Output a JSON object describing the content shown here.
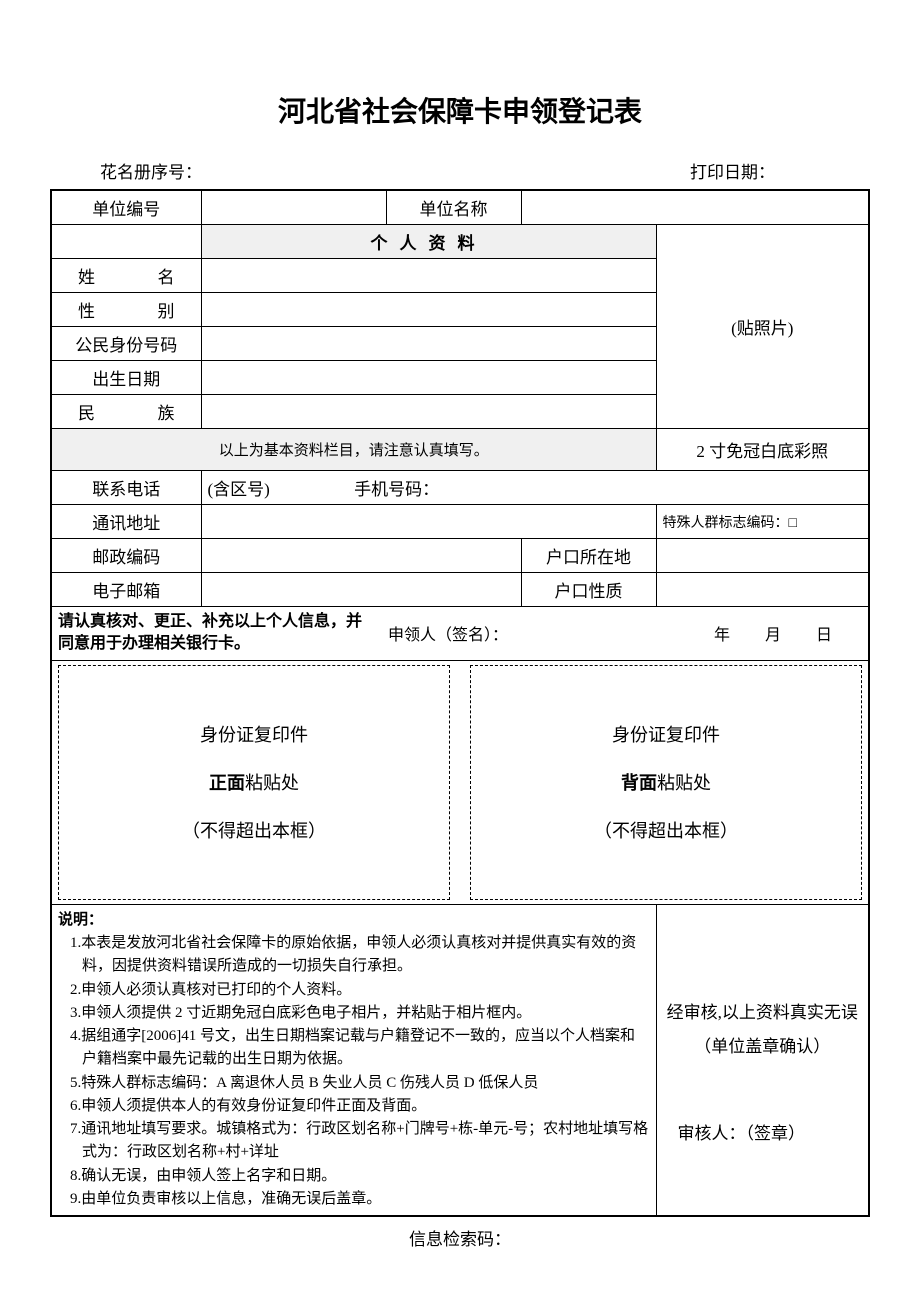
{
  "title": "河北省社会保障卡申领登记表",
  "header": {
    "roster_label": "花名册序号：",
    "print_date_label": "打印日期："
  },
  "row_unit": {
    "unit_no_label": "单位编号",
    "unit_name_label": "单位名称"
  },
  "section_personal": "个人资料",
  "labels": {
    "name": "姓",
    "name2": "名",
    "gender": "性",
    "gender2": "别",
    "id_no": "公民身份号码",
    "birth": "出生日期",
    "ethnic": "民",
    "ethnic2": "族",
    "basic_note": "以上为基本资料栏目，请注意认真填写。",
    "phone": "联系电话",
    "phone_area": "(含区号)",
    "phone_mobile": "手机号码：",
    "address": "通讯地址",
    "postcode": "邮政编码",
    "hukou_loc": "户口所在地",
    "email": "电子邮箱",
    "hukou_type": "户口性质",
    "special_code": "特殊人群标志编码：□"
  },
  "photo": {
    "placeholder": "(贴照片)",
    "spec": "2 寸免冠白底彩照"
  },
  "confirm": {
    "text_prefix": "请认真核对、更正、补充以上个人信息，并同意用于办理相关银行卡。",
    "signer": "申领人（签名）：",
    "date_y": "年",
    "date_m": "月",
    "date_d": "日"
  },
  "id_copy": {
    "title_front": "身份证复印件",
    "front_bold": "正面",
    "front_suffix": "粘贴处",
    "note": "（不得超出本框）",
    "title_back": "身份证复印件",
    "back_bold": "背面",
    "back_suffix": "粘贴处"
  },
  "instructions": {
    "title": "说明：",
    "items": [
      "1.本表是发放河北省社会保障卡的原始依据，申领人必须认真核对并提供真实有效的资料，因提供资料错误所造成的一切损失自行承担。",
      "2.申领人必须认真核对已打印的个人资料。",
      "3.申领人须提供 2 寸近期免冠白底彩色电子相片，并粘贴于相片框内。",
      "4.据组通字[2006]41 号文，出生日期档案记载与户籍登记不一致的，应当以个人档案和户籍档案中最先记载的出生日期为依据。",
      "5.特殊人群标志编码：A 离退休人员  B 失业人员 C 伤残人员  D 低保人员",
      "6.申领人须提供本人的有效身份证复印件正面及背面。",
      "7.通讯地址填写要求。城镇格式为：行政区划名称+门牌号+栋-单元-号；农村地址填写格式为：行政区划名称+村+详址",
      "8.确认无误，由申领人签上名字和日期。",
      "9.由单位负责审核以上信息，准确无误后盖章。"
    ]
  },
  "verify": {
    "line1": "经审核,以上资料真实无误",
    "line2": "（单位盖章确认）",
    "line3": "审核人：（签章）"
  },
  "footer": "信息检索码："
}
